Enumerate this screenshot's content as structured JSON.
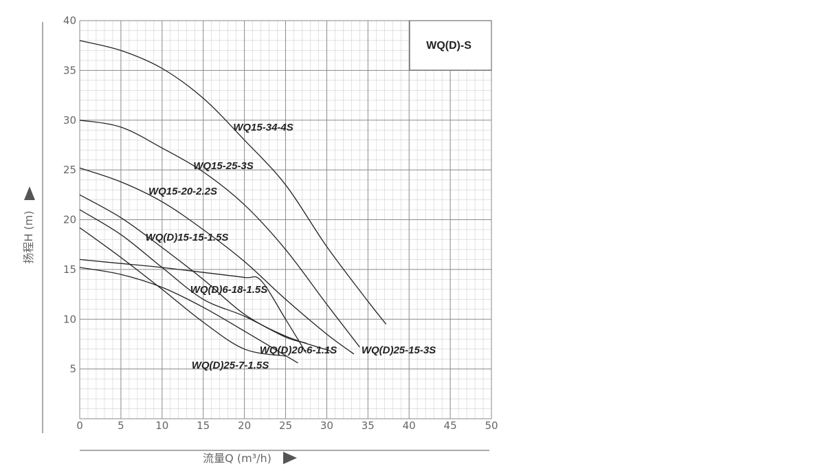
{
  "chart_data": {
    "type": "line",
    "title": "WQ(D)-S",
    "xlabel": "流量Q (m³/h)",
    "ylabel": "扬程H (m)",
    "xlim": [
      0,
      50
    ],
    "ylim": [
      0,
      40
    ],
    "x_ticks": [
      "0",
      "5",
      "10",
      "15",
      "20",
      "25",
      "30",
      "35",
      "40",
      "45",
      "50"
    ],
    "y_ticks": [
      "5",
      "10",
      "15",
      "20",
      "25",
      "30",
      "35",
      "40"
    ],
    "grid": true,
    "series": [
      {
        "name": "WQ15-34-4S",
        "x": [
          0,
          5,
          10,
          15,
          20,
          25,
          30,
          35,
          37.2
        ],
        "y": [
          38,
          37,
          35.2,
          32.2,
          28,
          23.5,
          17.3,
          11.8,
          9.5
        ]
      },
      {
        "name": "WQ15-25-3S",
        "x": [
          0,
          5,
          10,
          15,
          20,
          25,
          30,
          34
        ],
        "y": [
          30,
          29.3,
          27.2,
          24.8,
          21.5,
          17,
          11.5,
          7.2
        ]
      },
      {
        "name": "WQ15-20-2.2S",
        "x": [
          0,
          5,
          10,
          15,
          20,
          25,
          30,
          33.3
        ],
        "y": [
          25.2,
          23.8,
          21.8,
          19,
          15.8,
          12,
          8.5,
          6.5
        ]
      },
      {
        "name": "WQ(D)15-15-1.5S",
        "x": [
          0,
          5,
          10,
          15,
          20,
          25,
          30.5
        ],
        "y": [
          22.5,
          20.2,
          17.2,
          14,
          10.5,
          8.3,
          6.8
        ]
      },
      {
        "name": "WQ(D)6-18-1.5S",
        "x": [
          0,
          5,
          10,
          15,
          20,
          22,
          25,
          27.5
        ],
        "y": [
          16,
          15.6,
          15.2,
          14.7,
          14.2,
          13.9,
          10,
          6.6
        ]
      },
      {
        "name": "WQ(D)20-6-1.1S",
        "x": [
          0,
          5,
          10,
          15,
          20,
          25,
          27.5
        ],
        "y": [
          21,
          18.5,
          15.2,
          12,
          10.3,
          8.2,
          7.6
        ]
      },
      {
        "name": "WQ(D)25-15-3S",
        "x": [
          0,
          5,
          10,
          15,
          20,
          26.5
        ],
        "y": [
          15.2,
          14.5,
          13.2,
          11.2,
          8.8,
          5.6
        ]
      },
      {
        "name": "WQ(D)25-7-1.5S",
        "x": [
          0,
          5,
          10,
          15,
          20,
          25
        ],
        "y": [
          19.2,
          16.2,
          13,
          9.7,
          7,
          6.3
        ]
      }
    ]
  }
}
